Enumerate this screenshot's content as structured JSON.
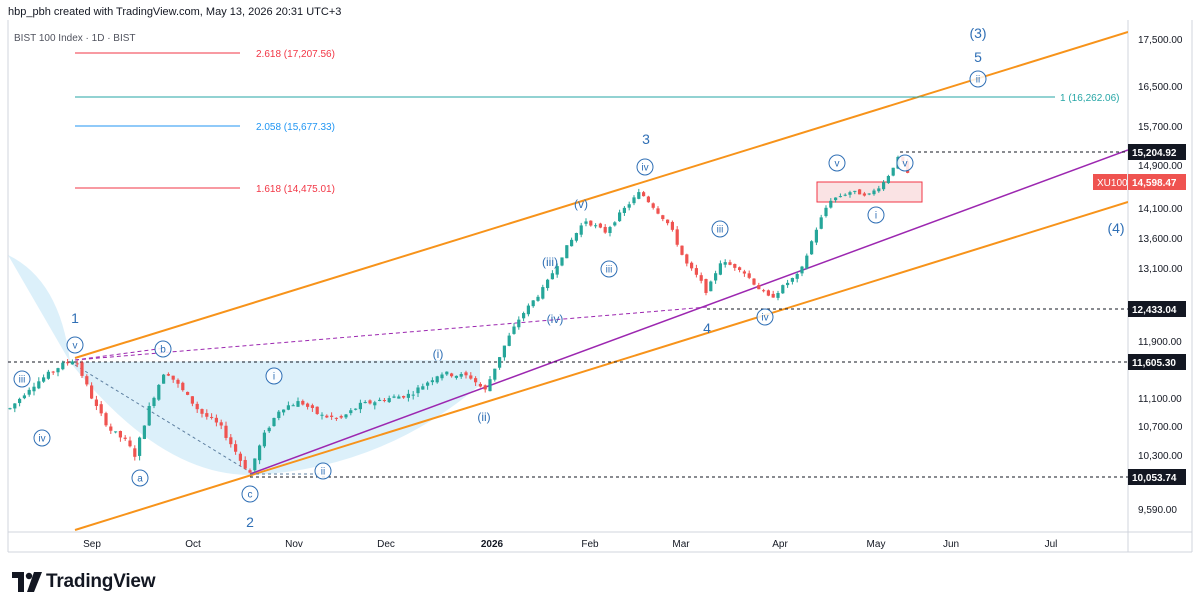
{
  "header": {
    "attribution": "hbp_pbh created with TradingView.com, May 13, 2026 20:31 UTC+3",
    "symbol": "BIST 100 Index · 1D · BIST"
  },
  "footer": {
    "brand": "TradingView"
  },
  "colors": {
    "up": "#26a69a",
    "down": "#ef5350",
    "channel": "#f7931a",
    "trend": "#9c27b0",
    "wave": "#2f6fb5",
    "fib_red": "#f23645",
    "fib_blue": "#2196f3",
    "fib_teal": "#26a6a6",
    "price_box": "#f23645"
  },
  "chart_data": {
    "type": "candlestick",
    "x": [
      "2025-08-26",
      "2025-09-30",
      "2025-10-31",
      "2025-11-28",
      "2025-12-31",
      "2026-01-28",
      "2026-02-27",
      "2026-03-31",
      "2026-04-30",
      "2026-05-13"
    ],
    "close": [
      11605,
      10300,
      11100,
      11300,
      11250,
      13900,
      12500,
      12800,
      14700,
      14598.47
    ],
    "x_ticks": [
      "Sep",
      "Oct",
      "Nov",
      "Dec",
      "2026",
      "Feb",
      "Mar",
      "Apr",
      "May",
      "Jun",
      "Jul"
    ],
    "y_ticks": [
      "17,500.00",
      "16,500.00",
      "15,700.00",
      "14,900.00",
      "14,100.00",
      "13,600.00",
      "13,100.00",
      "11,900.00",
      "11,100.00",
      "10,700.00",
      "10,300.00",
      "9,590.00"
    ],
    "price_labels": [
      {
        "text": "15,204.92",
        "value": 15204.92,
        "style": "dark"
      },
      {
        "text": "14,598.47",
        "value": 14598.47,
        "style": "red",
        "tag": "XU100"
      },
      {
        "text": "12,433.04",
        "value": 12433.04,
        "style": "dark"
      },
      {
        "text": "11,605.30",
        "value": 11605.3,
        "style": "dark"
      },
      {
        "text": "10,053.74",
        "value": 10053.74,
        "style": "dark"
      }
    ],
    "fib_levels": [
      {
        "text": "2.618 (17,207.56)",
        "value": 17207.56,
        "color": "red"
      },
      {
        "text": "2.058 (15,677.33)",
        "value": 15677.33,
        "color": "blue"
      },
      {
        "text": "1.618 (14,475.01)",
        "value": 14475.01,
        "color": "red"
      },
      {
        "text": "1 (16,262.06)",
        "value": 16262.06,
        "color": "teal"
      }
    ],
    "wave_labels": {
      "primary": [
        "1",
        "2",
        "3",
        "4",
        "5"
      ],
      "intermediate": [
        "(3)",
        "(4)"
      ],
      "circled": [
        "iii",
        "iv",
        "v",
        "b",
        "a",
        "c",
        "i",
        "ii",
        "(i)",
        "(ii)",
        "(iii)",
        "(iv)",
        "(v)",
        "iii",
        "iv",
        "v",
        "i",
        "ii",
        "iii",
        "iv",
        "v"
      ]
    },
    "annotations": [
      "channel",
      "trendline",
      "support box"
    ]
  }
}
